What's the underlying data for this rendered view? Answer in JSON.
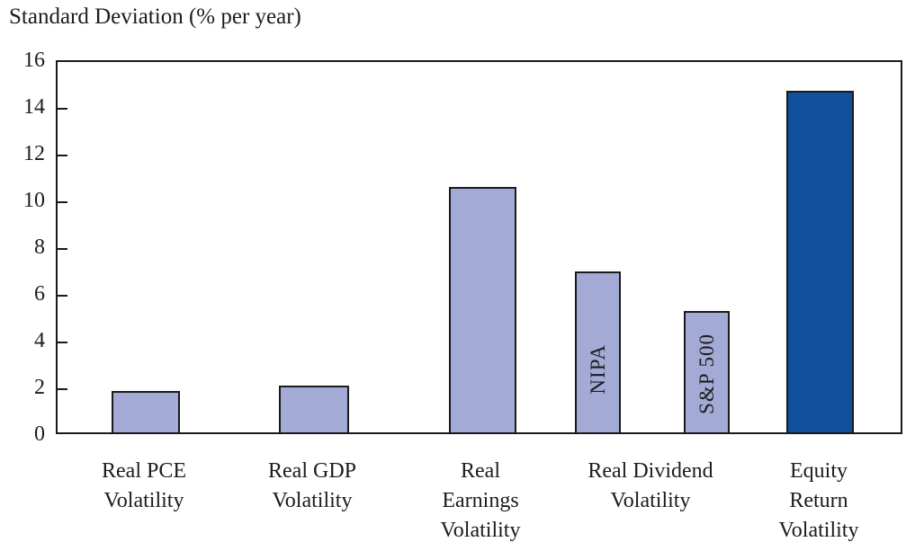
{
  "chart_data": {
    "type": "bar",
    "title": "Standard Deviation (% per year)",
    "xlabel": "",
    "ylabel": "Standard Deviation (% per year)",
    "ylim": [
      0,
      16
    ],
    "y_ticks": [
      0,
      2,
      4,
      6,
      8,
      10,
      12,
      14,
      16
    ],
    "grid": false,
    "legend_position": "none",
    "categories": [
      "Real PCE Volatility",
      "Real GDP Volatility",
      "Real Earnings Volatility",
      "Real Dividend Volatility (NIPA)",
      "Real Dividend Volatility (S&P 500)",
      "Equity Return Volatility"
    ],
    "values": [
      1.75,
      2.0,
      10.5,
      6.9,
      5.2,
      14.6
    ],
    "bars": [
      {
        "name": "real-pce-volatility",
        "value": 1.75,
        "color": "light",
        "inner_label": ""
      },
      {
        "name": "real-gdp-volatility",
        "value": 2.0,
        "color": "light",
        "inner_label": ""
      },
      {
        "name": "real-earnings-volatility",
        "value": 10.5,
        "color": "light",
        "inner_label": ""
      },
      {
        "name": "real-dividend-volatility-nipa",
        "value": 6.9,
        "color": "light",
        "inner_label": "NIPA"
      },
      {
        "name": "real-dividend-volatility-sp500",
        "value": 5.2,
        "color": "light",
        "inner_label": "S&P 500"
      },
      {
        "name": "equity-return-volatility",
        "value": 14.6,
        "color": "dark",
        "inner_label": ""
      }
    ],
    "x_labels": [
      {
        "lines": [
          "Real PCE",
          "Volatility"
        ]
      },
      {
        "lines": [
          "Real GDP",
          "Volatility"
        ]
      },
      {
        "lines": [
          "Real",
          "Earnings",
          "Volatility"
        ]
      },
      {
        "lines": [
          "Real Dividend",
          "Volatility"
        ]
      },
      {
        "lines": [
          "Equity",
          "Return",
          "Volatility"
        ]
      }
    ],
    "colors": {
      "light": "#a3aad6",
      "dark": "#11519c",
      "bar_border": "#1a1a1a",
      "axis": "#1a1a1a",
      "text": "#1c1c1c",
      "background": "#ffffff"
    }
  }
}
